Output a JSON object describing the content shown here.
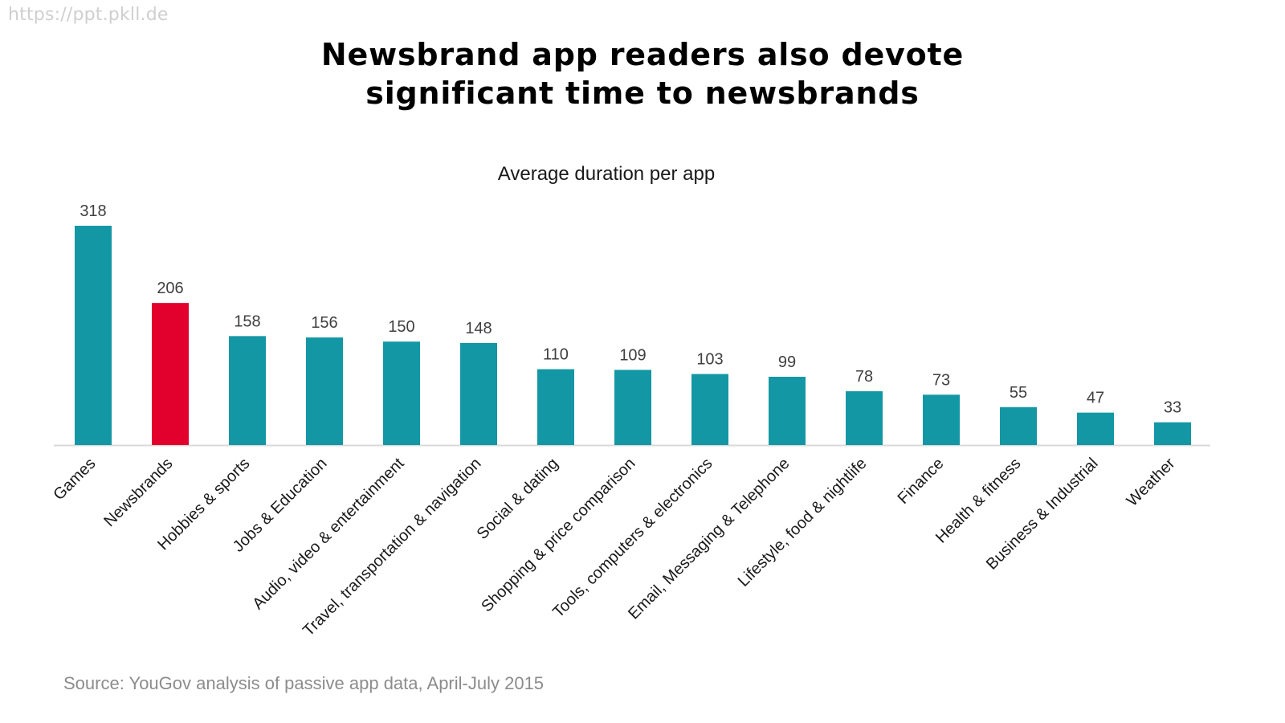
{
  "watermark": "https://ppt.pkll.de",
  "title": {
    "line1": "Newsbrand app readers also devote",
    "line2": "significant time to newsbrands"
  },
  "source": "Source: YouGov analysis of passive app data, April-July 2015",
  "colors": {
    "bar": "#1497a4",
    "highlight": "#e2002d",
    "baseline": "#d9d9d9",
    "label": "#404040"
  },
  "chart_data": {
    "type": "bar",
    "title": "Average duration per app",
    "xlabel": "",
    "ylabel": "",
    "ylim": [
      0,
      318
    ],
    "grid": false,
    "legend": "none",
    "highlight_category": "Newsbrands",
    "categories": [
      "Games",
      "Newsbrands",
      "Hobbies & sports",
      "Jobs & Education",
      "Audio, video & entertainment",
      "Travel, transportation & navigation",
      "Social & dating",
      "Shopping & price comparison",
      "Tools, computers & electronics",
      "Email, Messaging & Telephone",
      "Lifestyle, food & nightlife",
      "Finance",
      "Health & fitness",
      "Business & Industrial",
      "Weather"
    ],
    "values": [
      318,
      206,
      158,
      156,
      150,
      148,
      110,
      109,
      103,
      99,
      78,
      73,
      55,
      47,
      33
    ]
  }
}
